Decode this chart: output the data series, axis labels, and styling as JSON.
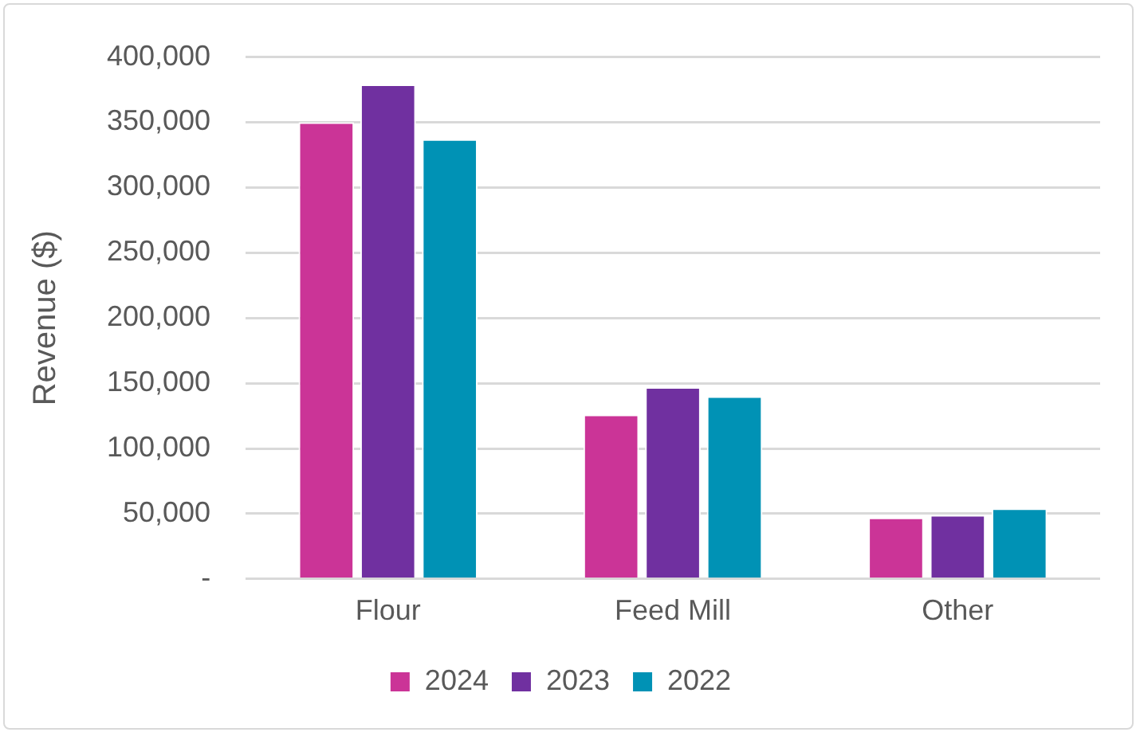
{
  "chart_data": {
    "type": "bar",
    "ylabel": "Revenue ($)",
    "categories": [
      "Flour",
      "Feed Mill",
      "Other"
    ],
    "series": [
      {
        "name": "2024",
        "color": "#cb3497",
        "values": [
          350000,
          126000,
          47000
        ]
      },
      {
        "name": "2023",
        "color": "#7030a0",
        "values": [
          379000,
          147000,
          49000
        ]
      },
      {
        "name": "2022",
        "color": "#0092b5",
        "values": [
          337000,
          140000,
          54000
        ]
      }
    ],
    "ylim": [
      0,
      400000
    ],
    "yticks": [
      {
        "value": 0,
        "label": "-"
      },
      {
        "value": 50000,
        "label": "50,000"
      },
      {
        "value": 100000,
        "label": "100,000"
      },
      {
        "value": 150000,
        "label": "150,000"
      },
      {
        "value": 200000,
        "label": "200,000"
      },
      {
        "value": 250000,
        "label": "250,000"
      },
      {
        "value": 300000,
        "label": "300,000"
      },
      {
        "value": 350000,
        "label": "350,000"
      },
      {
        "value": 400000,
        "label": "400,000"
      }
    ],
    "grid": "y",
    "legend": "bottom"
  }
}
